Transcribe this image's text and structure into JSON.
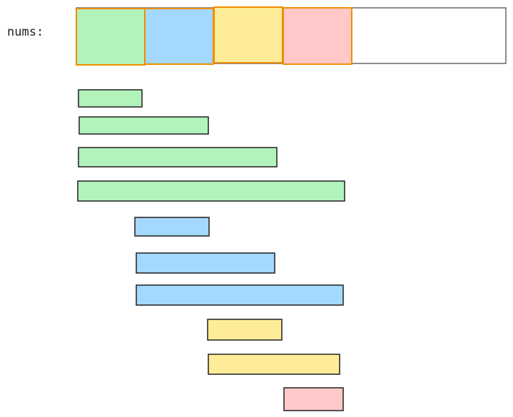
{
  "label": "nums:"
}
